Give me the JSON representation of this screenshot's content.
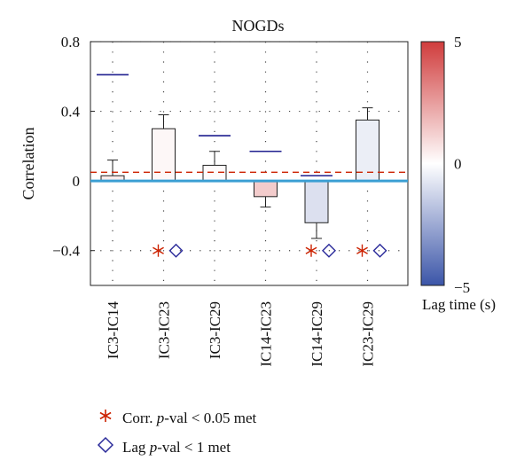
{
  "chart_data": {
    "type": "bar",
    "title": "NOGDs",
    "ylabel": "Correlation",
    "xlabel": "",
    "ylim": [
      -0.6,
      0.8
    ],
    "yticks": [
      -0.4,
      0,
      0.4,
      0.8
    ],
    "ytick_labels": [
      "−0.4",
      "0",
      "0.4",
      "0.8"
    ],
    "grid": true,
    "categories": [
      "IC3-IC14",
      "IC3-IC23",
      "IC3-IC29",
      "IC14-IC23",
      "IC14-IC29",
      "IC23-IC29"
    ],
    "values": [
      0.03,
      0.3,
      0.09,
      -0.09,
      -0.24,
      0.35
    ],
    "error_tip": [
      0.12,
      0.38,
      0.17,
      -0.15,
      -0.33,
      0.42
    ],
    "threshold_marks": [
      0.61,
      null,
      0.26,
      0.17,
      0.03,
      null
    ],
    "significance_line": 0.05,
    "zero_line": 0,
    "lag_times_s": [
      0.5,
      0.2,
      0.1,
      1.3,
      -0.9,
      -0.5
    ],
    "corr_pval_met": [
      false,
      true,
      false,
      false,
      true,
      true
    ],
    "lag_pval_met": [
      false,
      true,
      false,
      false,
      true,
      true
    ],
    "marker_level": -0.4,
    "colorbar": {
      "label": "Lag time (s)",
      "min": -5,
      "max": 5,
      "tick_labels": [
        "5",
        "0",
        "−5"
      ],
      "colors": {
        "high": "#d03c3c",
        "mid": "#ffffff",
        "low": "#3b55a8"
      }
    },
    "colors": {
      "zero_line": "#3b9fd3",
      "threshold_mark": "#1f1f8f",
      "significance_line": "#cc2200",
      "corr_marker": "#cc2200",
      "lag_marker": "#2a2a9a"
    }
  },
  "legend": {
    "corr_prefix": "Corr. ",
    "corr_italic": "p",
    "corr_suffix": "-val < 0.05 met",
    "lag_prefix": "Lag ",
    "lag_italic": "p",
    "lag_suffix": "-val < 1 met",
    "corr_icon": "asterisk-icon",
    "lag_icon": "diamond-icon"
  }
}
